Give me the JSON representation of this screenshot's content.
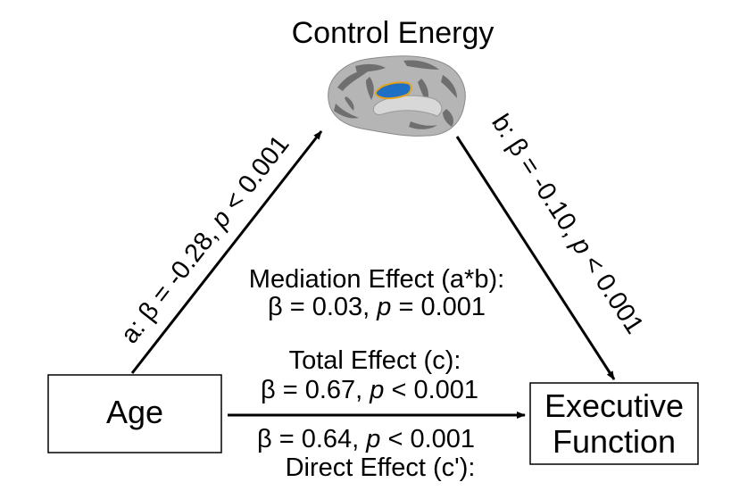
{
  "diagram": {
    "mediator": {
      "label": "Control Energy",
      "image": "cortical-surface-brain-medial-view",
      "highlight_color": "#1f6fc4",
      "highlight_outline": "#e3a21a"
    },
    "predictor": {
      "label": "Age"
    },
    "outcome": {
      "label_line1": "Executive",
      "label_line2": "Function"
    },
    "path_a": {
      "prefix": "a: β = -0.28, ",
      "p": "p",
      "suffix": " < 0.001"
    },
    "path_b": {
      "prefix": "b: β = -0.10, ",
      "p": "p",
      "suffix": " < 0.001"
    },
    "mediation": {
      "title": "Mediation Effect (a*b):",
      "stat_prefix": "β = 0.03, ",
      "p": "p",
      "stat_suffix": " = 0.001"
    },
    "total": {
      "title": "Total Effect (c):",
      "stat_prefix": "β = 0.67, ",
      "p": "p",
      "stat_suffix": " < 0.001"
    },
    "direct": {
      "title": "Direct Effect (c'):",
      "stat_prefix": "β = 0.64, ",
      "p": "p",
      "stat_suffix": " < 0.001"
    }
  }
}
